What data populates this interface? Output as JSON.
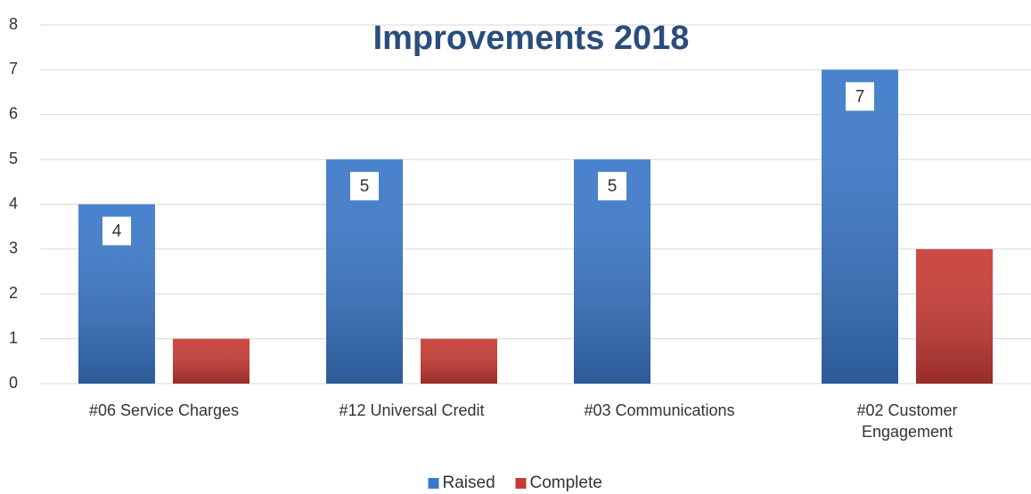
{
  "chart_data": {
    "type": "bar",
    "title": "Improvements 2018",
    "categories": [
      "#06 Service Charges",
      "#12 Universal Credit",
      "#03 Communications",
      "#02 Customer Engagement"
    ],
    "series": [
      {
        "name": "Raised",
        "color": "#3a78c9",
        "values": [
          4,
          5,
          5,
          7
        ],
        "data_labels": true
      },
      {
        "name": "Complete",
        "color": "#c93a34",
        "values": [
          1,
          1,
          0,
          3
        ]
      }
    ],
    "ylim": [
      0,
      8
    ],
    "yticks": [
      0,
      1,
      2,
      3,
      4,
      5,
      6,
      7,
      8
    ],
    "grid": true,
    "legend": "bottom"
  }
}
